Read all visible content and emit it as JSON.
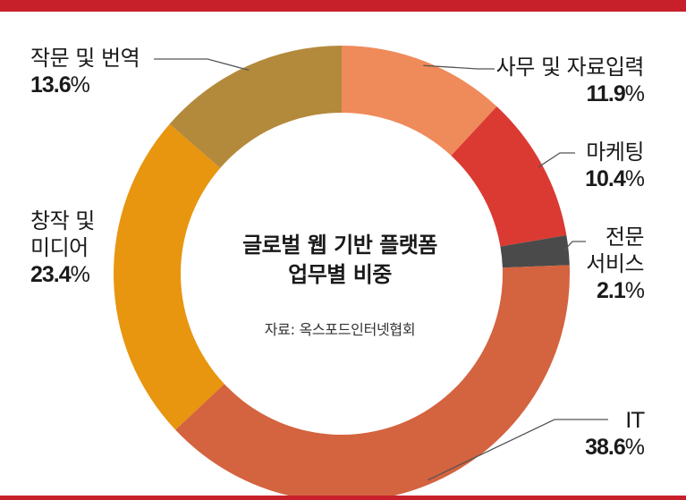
{
  "chart_data": {
    "type": "pie",
    "title": "글로벌 웹 기반 플랫폼 업무별 비중",
    "title_lines": [
      "글로벌 웹 기반 플랫폼",
      "업무별 비중"
    ],
    "source": "자료: 옥스포드인터넷협회",
    "slices": [
      {
        "label": "사무 및 자료입력",
        "label_lines": [
          "사무 및 자료입력"
        ],
        "value": 11.9,
        "display": "11.9",
        "color": "#ef8a5a"
      },
      {
        "label": "마케팅",
        "label_lines": [
          "마케팅"
        ],
        "value": 10.4,
        "display": "10.4",
        "color": "#db3a33"
      },
      {
        "label": "전문 서비스",
        "label_lines": [
          "전문",
          "서비스"
        ],
        "value": 2.1,
        "display": "2.1",
        "color": "#4a4a4a"
      },
      {
        "label": "IT",
        "label_lines": [
          "IT"
        ],
        "value": 38.6,
        "display": "38.6",
        "color": "#d4633f"
      },
      {
        "label": "창작 및 미디어",
        "label_lines": [
          "창작 및",
          "미디어"
        ],
        "value": 23.4,
        "display": "23.4",
        "color": "#e8950f"
      },
      {
        "label": "작문 및 번역",
        "label_lines": [
          "작문 및 번역"
        ],
        "value": 13.6,
        "display": "13.6",
        "color": "#b38a3c"
      }
    ],
    "unit": "%"
  },
  "colors": {
    "accent_bar": "#c8202a",
    "leader": "#555555"
  }
}
